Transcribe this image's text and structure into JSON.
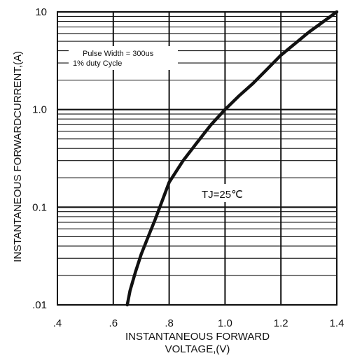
{
  "chart_data": {
    "type": "line",
    "title": "",
    "xlabel": [
      "INSTANTANEOUS FORWARD",
      "VOLTAGE,(V)"
    ],
    "ylabel": "INSTANTANEOUS FORWARDCURRENT,(A)",
    "x_scale": "linear",
    "y_scale": "log",
    "xlim": [
      0.4,
      1.4
    ],
    "ylim": [
      0.01,
      10
    ],
    "grid": true,
    "x_ticks": [
      0.4,
      0.6,
      0.8,
      1.0,
      1.2,
      1.4
    ],
    "x_tick_labels": [
      ".4",
      ".6",
      ".8",
      "1.0",
      "1.2",
      "1.4"
    ],
    "y_ticks": [
      0.01,
      0.1,
      1,
      10
    ],
    "y_tick_labels": [
      ".01",
      "0.1",
      "1.0",
      "10"
    ],
    "annotations": {
      "conditions": [
        "Pulse Width = 300us",
        "1% duty Cycle"
      ],
      "temperature": "TJ=25℃"
    },
    "colors": {
      "curve": "#111111",
      "grid": "#111111",
      "background": "#ffffff"
    },
    "series": [
      {
        "x": [
          0.65,
          0.66,
          0.68,
          0.7,
          0.72,
          0.75,
          0.8,
          0.85,
          0.9,
          0.95,
          1.0,
          1.05,
          1.1,
          1.2,
          1.3,
          1.4
        ],
        "y": [
          0.01,
          0.014,
          0.022,
          0.033,
          0.046,
          0.075,
          0.18,
          0.3,
          0.46,
          0.7,
          1.0,
          1.38,
          1.85,
          3.6,
          6.2,
          10
        ]
      }
    ]
  }
}
